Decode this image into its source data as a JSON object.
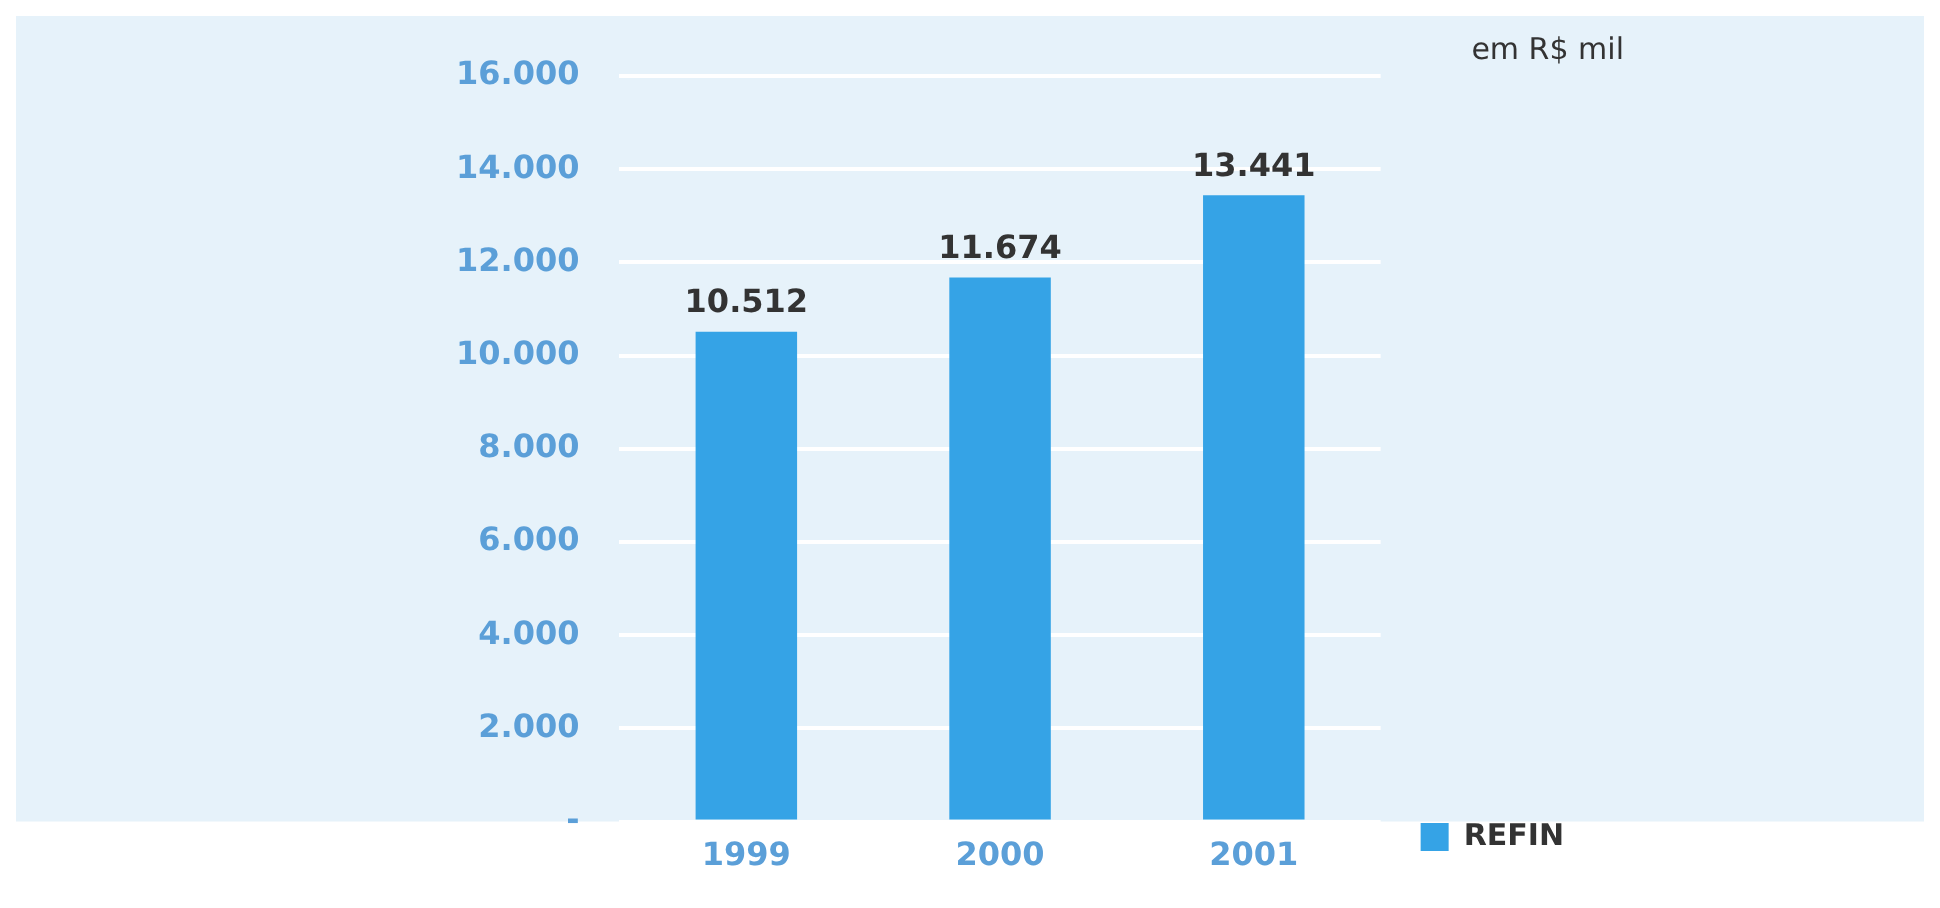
{
  "chart_data": {
    "type": "bar",
    "categories": [
      "1999",
      "2000",
      "2001"
    ],
    "series": [
      {
        "name": "REFIN",
        "color": "#35a3e6",
        "values": [
          10512,
          11674,
          13441
        ],
        "value_labels": [
          "10.512",
          "11.674",
          "13.441"
        ]
      }
    ],
    "ylim": [
      0,
      16000
    ],
    "yticks": [
      {
        "value": 0,
        "label": "-"
      },
      {
        "value": 2000,
        "label": "2.000"
      },
      {
        "value": 4000,
        "label": "4.000"
      },
      {
        "value": 6000,
        "label": "6.000"
      },
      {
        "value": 8000,
        "label": "8.000"
      },
      {
        "value": 10000,
        "label": "10.000"
      },
      {
        "value": 12000,
        "label": "12.000"
      },
      {
        "value": 14000,
        "label": "14.000"
      },
      {
        "value": 16000,
        "label": "16.000"
      }
    ],
    "grid": "y",
    "legend": "bottom right",
    "annotations": [
      "em R$ mil"
    ]
  }
}
